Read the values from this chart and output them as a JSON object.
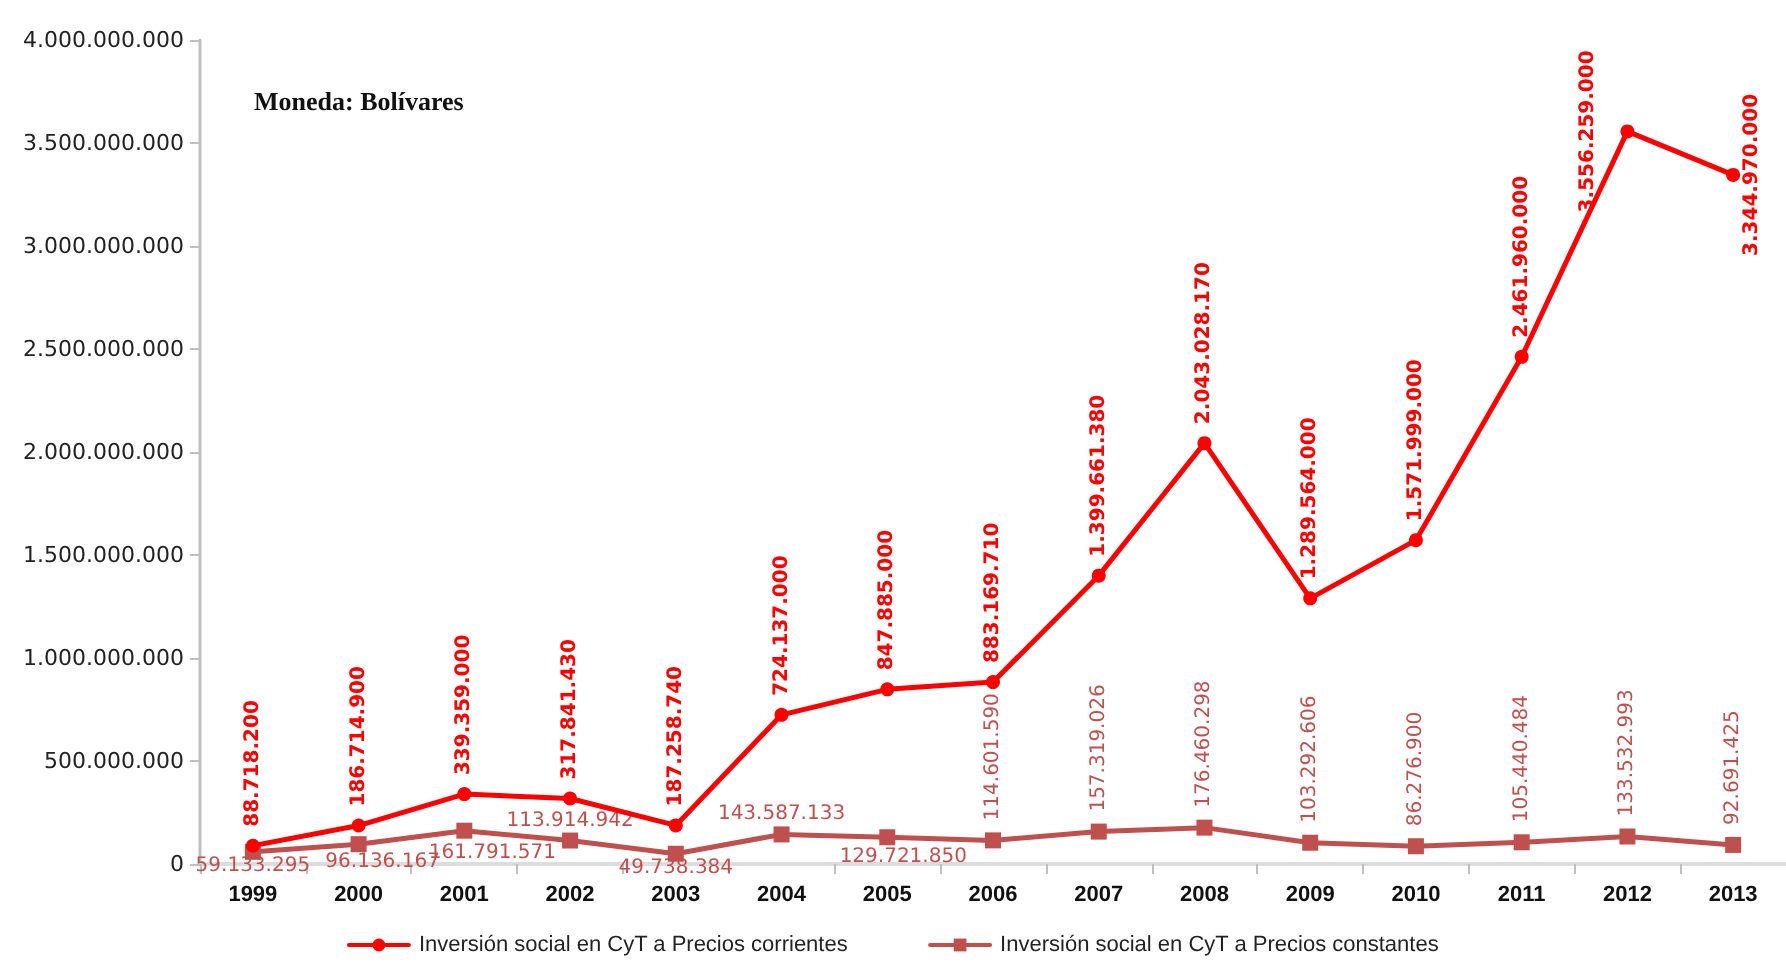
{
  "chart_data": {
    "type": "line",
    "annotations": [
      "Moneda: Bolívares"
    ],
    "categories": [
      "1999",
      "2000",
      "2001",
      "2002",
      "2003",
      "2004",
      "2005",
      "2006",
      "2007",
      "2008",
      "2009",
      "2010",
      "2011",
      "2012",
      "2013"
    ],
    "series": [
      {
        "name": "Inversión social en CyT a Precios corrientes",
        "color": "#ff0000",
        "marker": "circle",
        "values": [
          88718200,
          186714900,
          339359000,
          317841430,
          187258740,
          724137000,
          847885000,
          883169710,
          1399661380,
          2043028170,
          1289564000,
          1571999000,
          2461960000,
          3556259000,
          3344970000
        ],
        "value_labels": [
          "88.718.200",
          "186.714.900",
          "339.359.000",
          "317.841.430",
          "187.258.740",
          "724.137.000",
          "847.885.000",
          "883.169.710",
          "1.399.661.380",
          "2.043.028.170",
          "1.289.564.000",
          "1.571.999.000",
          "2.461.960.000",
          "3.556.259.000",
          "3.344.970.000"
        ]
      },
      {
        "name": "Inversión social en CyT a Precios constantes",
        "color": "#c0504d",
        "marker": "square",
        "values": [
          59133295,
          96136167,
          161791571,
          113914942,
          49738384,
          143587133,
          129721850,
          114601590,
          157319026,
          176460298,
          103292606,
          86276900,
          105440484,
          133532993,
          92691425
        ],
        "value_labels": [
          "59.133.295",
          "96.136.167",
          "161.791.571",
          "113.914.942",
          "49.738.384",
          "143.587.133",
          "129.721.850",
          "114.601.590",
          "157.319.026",
          "176.460.298",
          "103.292.606",
          "86.276.900",
          "105.440.484",
          "133.532.993",
          "92.691.425"
        ]
      }
    ],
    "ylim": [
      0,
      4000000000
    ],
    "yticks": [
      {
        "value": 0,
        "label": "0"
      },
      {
        "value": 500000000,
        "label": "500.000.000"
      },
      {
        "value": 1000000000,
        "label": "1.000.000.000"
      },
      {
        "value": 1500000000,
        "label": "1.500.000.000"
      },
      {
        "value": 2000000000,
        "label": "2.000.000.000"
      },
      {
        "value": 2500000000,
        "label": "2.500.000.000"
      },
      {
        "value": 3000000000,
        "label": "3.000.000.000"
      },
      {
        "value": 3500000000,
        "label": "3.500.000.000"
      },
      {
        "value": 4000000000,
        "label": "4.000.000.000"
      }
    ],
    "grid": false,
    "legend": "bottom"
  }
}
